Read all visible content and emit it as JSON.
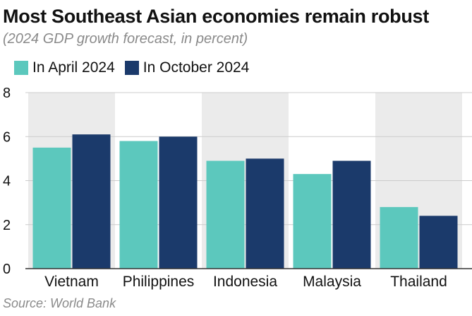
{
  "chart_data": {
    "type": "bar",
    "title": "Most Southeast Asian economies remain robust",
    "subtitle": "(2024 GDP growth forecast, in percent)",
    "source": "Source: World Bank",
    "categories": [
      "Vietnam",
      "Philippines",
      "Indonesia",
      "Malaysia",
      "Thailand"
    ],
    "series": [
      {
        "name": "In April 2024",
        "color": "#5cc8bd",
        "values": [
          5.5,
          5.8,
          4.9,
          4.3,
          2.8
        ]
      },
      {
        "name": "In October 2024",
        "color": "#1b3a6b",
        "values": [
          6.1,
          6.0,
          5.0,
          4.9,
          2.4
        ]
      }
    ],
    "ylim": [
      0,
      8
    ],
    "yticks": [
      "0",
      "2",
      "4",
      "6",
      "8"
    ],
    "xlabel": "",
    "ylabel": "",
    "grid": true,
    "legend_position": "top-left",
    "band_color": "#ebebeb",
    "grid_color": "#cccccc"
  }
}
